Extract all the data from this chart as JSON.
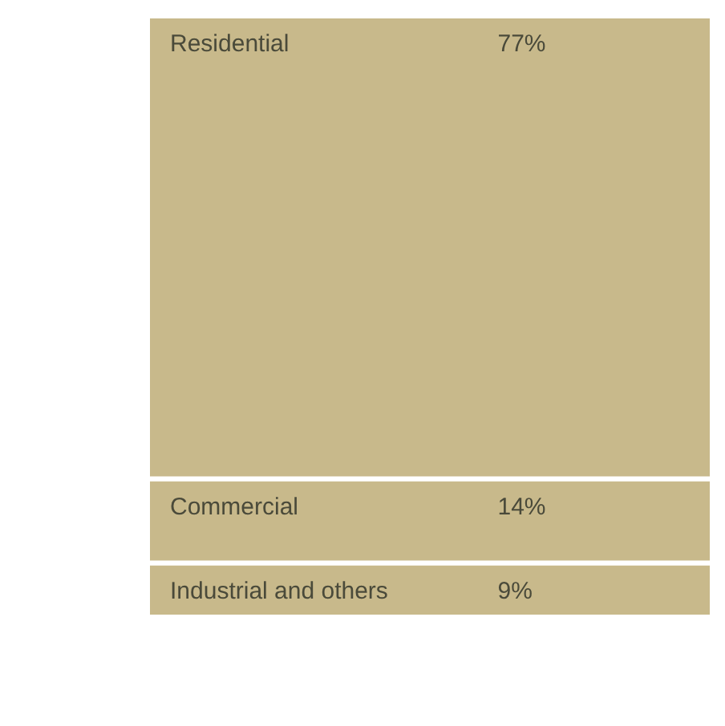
{
  "chart_data": {
    "type": "bar",
    "stacked": true,
    "categories": [
      null
    ],
    "series": [
      {
        "name": "Industrial and others",
        "color": "#c8b98b",
        "values": [
          9
        ],
        "value_labels": [
          "9%"
        ]
      },
      {
        "name": "Commercial",
        "color": "#c8b98b",
        "values": [
          14
        ],
        "value_labels": [
          "14%"
        ]
      },
      {
        "name": "Residential",
        "color": "#c8b98b",
        "values": [
          77
        ],
        "value_labels": [
          "77%"
        ]
      }
    ]
  }
}
